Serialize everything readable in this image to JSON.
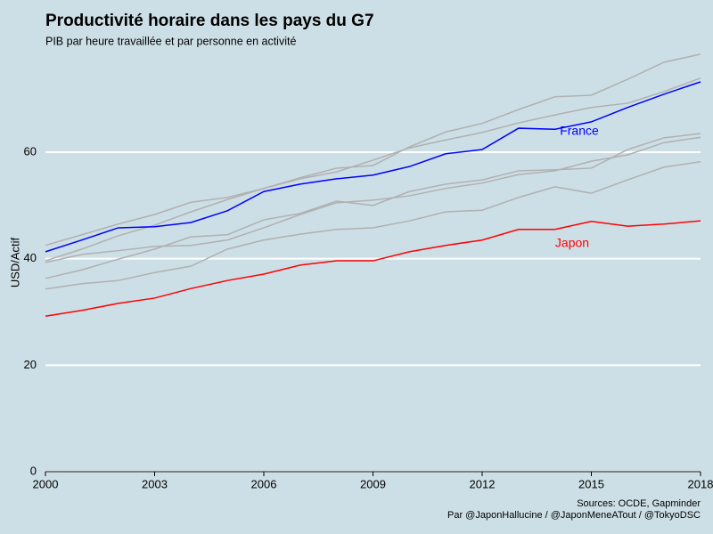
{
  "chart_data": {
    "type": "line",
    "title": "Productivité horaire dans les pays du G7",
    "subtitle": "PIB par heure travaillée et par personne en activité",
    "y_label": "USD/Actif",
    "caption": [
      "Sources: OCDE, Gapminder",
      "Par @JaponHallucine / @JaponMeneATout / @TokyoDSC"
    ],
    "x": [
      2000,
      2001,
      2002,
      2003,
      2004,
      2005,
      2006,
      2007,
      2008,
      2009,
      2010,
      2011,
      2012,
      2013,
      2014,
      2015,
      2016,
      2017,
      2018
    ],
    "xlim": [
      2000,
      2018
    ],
    "xticks": [
      2000,
      2003,
      2006,
      2009,
      2012,
      2015,
      2018
    ],
    "ylim": [
      0,
      78.5
    ],
    "yticks": [
      0,
      20,
      40,
      60
    ],
    "grid": true,
    "series": [
      {
        "color": "#b0b0b0",
        "values": [
          42.5,
          44.5,
          46.5,
          48.3,
          50.6,
          51.5,
          53.2,
          55.2,
          57.0,
          57.5,
          61.0,
          63.8,
          65.4,
          68.0,
          70.4,
          70.7,
          73.7,
          76.9,
          78.4
        ]
      },
      {
        "color": "#b0b0b0",
        "values": [
          39.6,
          41.8,
          44.3,
          46.3,
          48.8,
          51.1,
          53.2,
          55.0,
          56.3,
          58.5,
          60.8,
          62.3,
          63.7,
          65.5,
          67.0,
          68.4,
          69.2,
          71.4,
          73.9
        ]
      },
      {
        "color": "#b0b0b0",
        "values": [
          36.3,
          37.9,
          39.9,
          41.8,
          44.1,
          44.5,
          47.3,
          48.5,
          50.8,
          50.0,
          52.6,
          54.0,
          54.8,
          56.5,
          56.7,
          57.0,
          60.5,
          62.7,
          63.5
        ]
      },
      {
        "color": "#b0b0b0",
        "values": [
          39.3,
          40.8,
          41.5,
          42.3,
          42.5,
          43.5,
          45.8,
          48.3,
          50.5,
          51.0,
          51.8,
          53.2,
          54.2,
          55.8,
          56.5,
          58.3,
          59.5,
          61.8,
          62.8
        ]
      },
      {
        "color": "#b0b0b0",
        "values": [
          34.3,
          35.3,
          35.9,
          37.4,
          38.6,
          41.8,
          43.5,
          44.6,
          45.5,
          45.8,
          47.1,
          48.8,
          49.1,
          51.5,
          53.5,
          52.3,
          54.8,
          57.2,
          58.2
        ]
      },
      {
        "name": "France",
        "color": "#0000ff",
        "values": [
          41.3,
          43.5,
          45.8,
          46.0,
          46.8,
          49.0,
          52.6,
          54.0,
          55.0,
          55.7,
          57.3,
          59.7,
          60.5,
          64.5,
          64.3,
          65.7,
          68.4,
          70.9,
          73.2
        ]
      },
      {
        "name": "Japon",
        "color": "#ff0000",
        "values": [
          29.2,
          30.3,
          31.6,
          32.6,
          34.4,
          35.9,
          37.1,
          38.8,
          39.6,
          39.6,
          41.3,
          42.5,
          43.5,
          45.5,
          45.5,
          47.0,
          46.1,
          46.5,
          47.1
        ]
      }
    ]
  }
}
